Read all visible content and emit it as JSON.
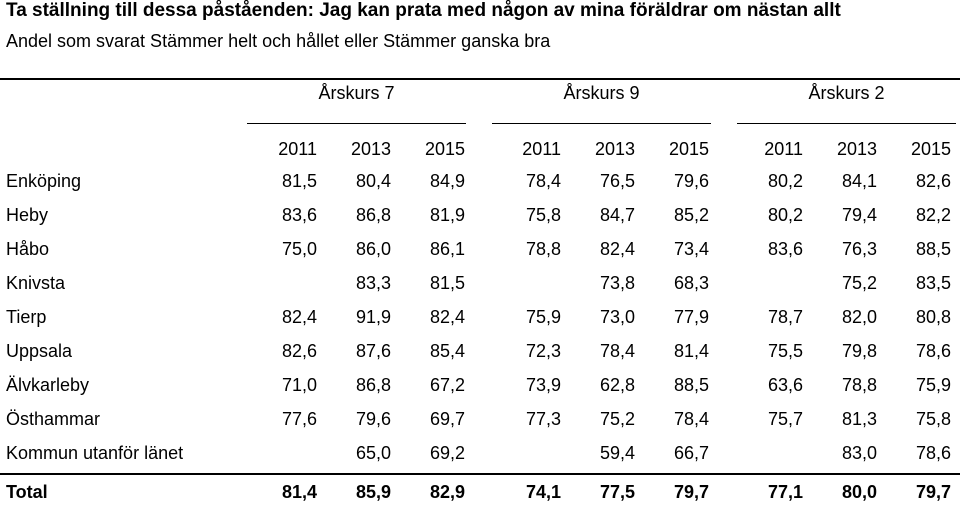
{
  "title": "Ta ställning till dessa påståenden: Jag kan prata med någon av mina föräldrar om nästan allt",
  "subtitle": "Andel som svarat Stämmer helt och hållet eller Stämmer ganska bra",
  "groups": [
    "Årskurs 7",
    "Årskurs 9",
    "Årskurs 2"
  ],
  "years": [
    "2011",
    "2013",
    "2015",
    "2011",
    "2013",
    "2015",
    "2011",
    "2013",
    "2015"
  ],
  "rows": [
    {
      "label": "Enköping",
      "values": [
        "81,5",
        "80,4",
        "84,9",
        "78,4",
        "76,5",
        "79,6",
        "80,2",
        "84,1",
        "82,6"
      ]
    },
    {
      "label": "Heby",
      "values": [
        "83,6",
        "86,8",
        "81,9",
        "75,8",
        "84,7",
        "85,2",
        "80,2",
        "79,4",
        "82,2"
      ]
    },
    {
      "label": "Håbo",
      "values": [
        "75,0",
        "86,0",
        "86,1",
        "78,8",
        "82,4",
        "73,4",
        "83,6",
        "76,3",
        "88,5"
      ]
    },
    {
      "label": "Knivsta",
      "values": [
        "",
        "83,3",
        "81,5",
        "",
        "73,8",
        "68,3",
        "",
        "75,2",
        "83,5"
      ]
    },
    {
      "label": "Tierp",
      "values": [
        "82,4",
        "91,9",
        "82,4",
        "75,9",
        "73,0",
        "77,9",
        "78,7",
        "82,0",
        "80,8"
      ]
    },
    {
      "label": "Uppsala",
      "values": [
        "82,6",
        "87,6",
        "85,4",
        "72,3",
        "78,4",
        "81,4",
        "75,5",
        "79,8",
        "78,6"
      ]
    },
    {
      "label": "Älvkarleby",
      "values": [
        "71,0",
        "86,8",
        "67,2",
        "73,9",
        "62,8",
        "88,5",
        "63,6",
        "78,8",
        "75,9"
      ]
    },
    {
      "label": "Östhammar",
      "values": [
        "77,6",
        "79,6",
        "69,7",
        "77,3",
        "75,2",
        "78,4",
        "75,7",
        "81,3",
        "75,8"
      ]
    },
    {
      "label": "Kommun utanför länet",
      "values": [
        "",
        "65,0",
        "69,2",
        "",
        "59,4",
        "66,7",
        "",
        "83,0",
        "78,6"
      ]
    }
  ],
  "total": {
    "label": "Total",
    "values": [
      "81,4",
      "85,9",
      "82,9",
      "74,1",
      "77,5",
      "79,7",
      "77,1",
      "80,0",
      "79,7"
    ]
  }
}
